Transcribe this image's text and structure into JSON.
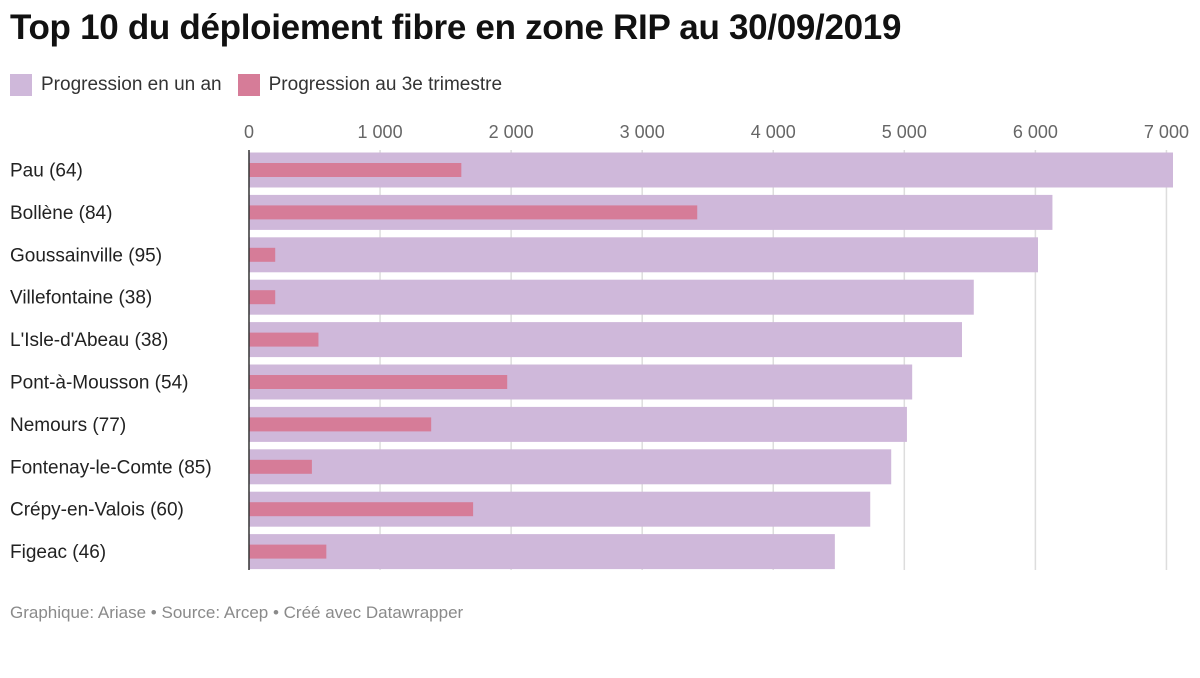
{
  "title": "Top 10 du déploiement fibre en zone RIP au 30/09/2019",
  "legend": [
    {
      "label": "Progression en un an",
      "color": "#cfb8da"
    },
    {
      "label": "Progression au 3e trimestre",
      "color": "#d67c98"
    }
  ],
  "footer": "Graphique: Ariase • Source: Arcep • Créé avec Datawrapper",
  "chart_data": {
    "type": "bar",
    "orientation": "horizontal",
    "categories": [
      "Pau (64)",
      "Bollène (84)",
      "Goussainville (95)",
      "Villefontaine (38)",
      "L'Isle-d'Abeau (38)",
      "Pont-à-Mousson (54)",
      "Nemours (77)",
      "Fontenay-le-Comte (85)",
      "Crépy-en-Valois (60)",
      "Figeac (46)"
    ],
    "series": [
      {
        "name": "Progression en un an",
        "color": "#cfb8da",
        "values": [
          7050,
          6130,
          6020,
          5530,
          5440,
          5060,
          5020,
          4900,
          4740,
          4470
        ]
      },
      {
        "name": "Progression au 3e trimestre",
        "color": "#d67c98",
        "values": [
          1620,
          3420,
          200,
          200,
          530,
          1970,
          1390,
          480,
          1710,
          590
        ]
      }
    ],
    "xticks": [
      0,
      1000,
      2000,
      3000,
      4000,
      5000,
      6000,
      7000
    ],
    "xtick_labels": [
      "0",
      "1 000",
      "2 000",
      "3 000",
      "4 000",
      "5 000",
      "6 000",
      "7 000"
    ],
    "xlim": [
      0,
      7050
    ],
    "grid": true
  }
}
